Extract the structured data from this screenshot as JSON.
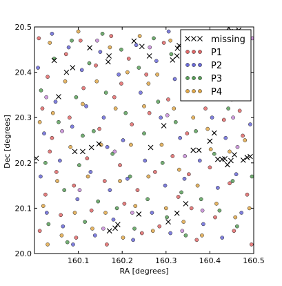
{
  "chart_data": {
    "type": "scatter",
    "xlabel": "RA [degrees]",
    "ylabel": "Dec [degrees]",
    "xlim": [
      160.0,
      160.5
    ],
    "ylim": [
      20.0,
      20.5
    ],
    "xticks": [
      160.1,
      160.2,
      160.3,
      160.4,
      160.5
    ],
    "yticks": [
      20.0,
      20.1,
      20.2,
      20.3,
      20.4,
      20.5
    ],
    "xtick_labels": [
      "160.1",
      "160.2",
      "160.3",
      "160.4",
      "160.5"
    ],
    "ytick_labels": [
      "20.0",
      "20.1",
      "20.2",
      "20.3",
      "20.4",
      "20.5"
    ],
    "grid": false,
    "legend_position": "top-right",
    "series": [
      {
        "name": "missing",
        "marker": "x",
        "color": "#000000",
        "points": [
          [
            160.045,
            20.426
          ],
          [
            160.055,
            20.346
          ],
          [
            160.073,
            20.4
          ],
          [
            160.087,
            20.41
          ],
          [
            160.092,
            20.225
          ],
          [
            160.11,
            20.225
          ],
          [
            160.126,
            20.454
          ],
          [
            160.13,
            20.234
          ],
          [
            160.147,
            20.242
          ],
          [
            160.168,
            20.423
          ],
          [
            160.17,
            20.436
          ],
          [
            160.19,
            20.064
          ],
          [
            160.184,
            20.056
          ],
          [
            160.171,
            20.05
          ],
          [
            160.227,
            20.469
          ],
          [
            160.245,
            20.457
          ],
          [
            160.238,
            20.087
          ],
          [
            160.262,
            20.436
          ],
          [
            160.265,
            20.234
          ],
          [
            160.295,
            20.282
          ],
          [
            160.315,
            20.427
          ],
          [
            160.325,
            20.436
          ],
          [
            160.326,
            20.453
          ],
          [
            160.33,
            20.459
          ],
          [
            160.305,
            20.07
          ],
          [
            160.325,
            20.089
          ],
          [
            160.345,
            20.11
          ],
          [
            160.362,
            20.228
          ],
          [
            160.375,
            20.228
          ],
          [
            160.4,
            20.248
          ],
          [
            160.41,
            20.266
          ],
          [
            160.418,
            20.208
          ],
          [
            160.428,
            20.208
          ],
          [
            160.434,
            20.209
          ],
          [
            160.44,
            20.196
          ],
          [
            160.448,
            20.205
          ],
          [
            160.456,
            20.218
          ],
          [
            160.476,
            20.206
          ],
          [
            160.485,
            20.212
          ],
          [
            160.492,
            20.214
          ],
          [
            160.443,
            20.498
          ],
          [
            160.456,
            20.49
          ],
          [
            160.466,
            20.493
          ],
          [
            160.004,
            20.21
          ]
        ]
      },
      {
        "name": "P1",
        "marker": "o",
        "color": "#e06868",
        "points": [
          [
            160.01,
            20.475
          ],
          [
            160.018,
            20.32
          ],
          [
            160.025,
            20.13
          ],
          [
            160.012,
            20.05
          ],
          [
            160.03,
            20.39
          ],
          [
            160.04,
            20.255
          ],
          [
            160.05,
            20.18
          ],
          [
            160.06,
            20.085
          ],
          [
            160.072,
            20.44
          ],
          [
            160.08,
            20.3
          ],
          [
            160.09,
            20.15
          ],
          [
            160.095,
            20.035
          ],
          [
            160.105,
            20.47
          ],
          [
            160.112,
            20.365
          ],
          [
            160.12,
            20.21
          ],
          [
            160.13,
            20.095
          ],
          [
            160.14,
            20.415
          ],
          [
            160.148,
            20.275
          ],
          [
            160.16,
            20.16
          ],
          [
            160.165,
            20.02
          ],
          [
            160.175,
            20.48
          ],
          [
            160.182,
            20.345
          ],
          [
            160.195,
            20.195
          ],
          [
            160.205,
            20.11
          ],
          [
            160.215,
            20.43
          ],
          [
            160.222,
            20.285
          ],
          [
            160.235,
            20.14
          ],
          [
            160.245,
            20.045
          ],
          [
            160.255,
            20.395
          ],
          [
            160.262,
            20.31
          ],
          [
            160.275,
            20.18
          ],
          [
            160.285,
            20.06
          ],
          [
            160.295,
            20.465
          ],
          [
            160.305,
            20.34
          ],
          [
            160.315,
            20.215
          ],
          [
            160.328,
            20.125
          ],
          [
            160.338,
            20.41
          ],
          [
            160.348,
            20.265
          ],
          [
            160.358,
            20.1
          ],
          [
            160.37,
            20.03
          ],
          [
            160.38,
            20.455
          ],
          [
            160.39,
            20.32
          ],
          [
            160.4,
            20.19
          ],
          [
            160.412,
            20.08
          ],
          [
            160.422,
            20.42
          ],
          [
            160.432,
            20.295
          ],
          [
            160.445,
            20.155
          ],
          [
            160.455,
            20.05
          ],
          [
            160.465,
            20.38
          ],
          [
            160.475,
            20.26
          ],
          [
            160.485,
            20.13
          ],
          [
            160.495,
            20.02
          ],
          [
            160.035,
            20.225
          ],
          [
            160.198,
            20.375
          ],
          [
            160.352,
            20.175
          ],
          [
            160.468,
            20.315
          ]
        ]
      },
      {
        "name": "P2",
        "marker": "o",
        "color": "#6a6ad8",
        "points": [
          [
            160.008,
            20.41
          ],
          [
            160.022,
            20.265
          ],
          [
            160.028,
            20.09
          ],
          [
            160.04,
            20.485
          ],
          [
            160.048,
            20.335
          ],
          [
            160.058,
            20.205
          ],
          [
            160.065,
            20.06
          ],
          [
            160.078,
            20.455
          ],
          [
            160.086,
            20.28
          ],
          [
            160.098,
            20.12
          ],
          [
            160.108,
            20.405
          ],
          [
            160.118,
            20.325
          ],
          [
            160.128,
            20.18
          ],
          [
            160.138,
            20.04
          ],
          [
            160.15,
            20.445
          ],
          [
            160.158,
            20.3
          ],
          [
            160.172,
            20.14
          ],
          [
            160.18,
            20.075
          ],
          [
            160.192,
            20.395
          ],
          [
            160.202,
            20.25
          ],
          [
            160.212,
            20.165
          ],
          [
            160.225,
            20.03
          ],
          [
            160.232,
            20.46
          ],
          [
            160.242,
            20.355
          ],
          [
            160.252,
            20.205
          ],
          [
            160.268,
            20.09
          ],
          [
            160.278,
            20.425
          ],
          [
            160.288,
            20.3
          ],
          [
            160.298,
            20.15
          ],
          [
            160.31,
            20.045
          ],
          [
            160.32,
            20.385
          ],
          [
            160.332,
            20.255
          ],
          [
            160.342,
            20.165
          ],
          [
            160.355,
            20.48
          ],
          [
            160.365,
            20.345
          ],
          [
            160.377,
            20.205
          ],
          [
            160.385,
            20.065
          ],
          [
            160.395,
            20.425
          ],
          [
            160.405,
            20.3
          ],
          [
            160.418,
            20.145
          ],
          [
            160.428,
            20.035
          ],
          [
            160.438,
            20.46
          ],
          [
            160.45,
            20.34
          ],
          [
            160.46,
            20.175
          ],
          [
            160.472,
            20.09
          ],
          [
            160.482,
            20.405
          ],
          [
            160.492,
            20.285
          ],
          [
            160.014,
            20.17
          ],
          [
            160.166,
            20.235
          ],
          [
            160.306,
            20.49
          ],
          [
            160.436,
            20.255
          ],
          [
            160.088,
            20.02
          ]
        ]
      },
      {
        "name": "P3",
        "marker": "o",
        "color": "#5aa05a",
        "points": [
          [
            160.015,
            20.36
          ],
          [
            160.025,
            20.2
          ],
          [
            160.032,
            20.065
          ],
          [
            160.045,
            20.43
          ],
          [
            160.055,
            20.29
          ],
          [
            160.068,
            20.14
          ],
          [
            160.075,
            20.025
          ],
          [
            160.085,
            20.47
          ],
          [
            160.095,
            20.345
          ],
          [
            160.102,
            20.195
          ],
          [
            160.115,
            20.07
          ],
          [
            160.125,
            20.42
          ],
          [
            160.135,
            20.27
          ],
          [
            160.145,
            20.115
          ],
          [
            160.155,
            20.485
          ],
          [
            160.163,
            20.355
          ],
          [
            160.178,
            20.22
          ],
          [
            160.188,
            20.1
          ],
          [
            160.198,
            20.45
          ],
          [
            160.208,
            20.31
          ],
          [
            160.218,
            20.17
          ],
          [
            160.228,
            20.055
          ],
          [
            160.238,
            20.41
          ],
          [
            160.25,
            20.265
          ],
          [
            160.258,
            20.12
          ],
          [
            160.272,
            20.475
          ],
          [
            160.282,
            20.335
          ],
          [
            160.292,
            20.2
          ],
          [
            160.302,
            20.08
          ],
          [
            160.312,
            20.44
          ],
          [
            160.322,
            20.29
          ],
          [
            160.335,
            20.135
          ],
          [
            160.345,
            20.04
          ],
          [
            160.358,
            20.395
          ],
          [
            160.368,
            20.27
          ],
          [
            160.38,
            20.12
          ],
          [
            160.392,
            20.48
          ],
          [
            160.402,
            20.35
          ],
          [
            160.41,
            20.22
          ],
          [
            160.422,
            20.095
          ],
          [
            160.435,
            20.44
          ],
          [
            160.442,
            20.32
          ],
          [
            160.452,
            20.16
          ],
          [
            160.462,
            20.06
          ],
          [
            160.478,
            20.46
          ],
          [
            160.488,
            20.345
          ],
          [
            160.496,
            20.17
          ],
          [
            160.11,
            20.26
          ]
        ]
      },
      {
        "name": "P4",
        "marker": "o",
        "color": "#e0a84a",
        "points": [
          [
            160.012,
            20.29
          ],
          [
            160.02,
            20.105
          ],
          [
            160.035,
            20.465
          ],
          [
            160.042,
            20.31
          ],
          [
            160.052,
            20.16
          ],
          [
            160.062,
            20.04
          ],
          [
            160.07,
            20.38
          ],
          [
            160.082,
            20.235
          ],
          [
            160.092,
            20.09
          ],
          [
            160.1,
            20.49
          ],
          [
            160.11,
            20.33
          ],
          [
            160.122,
            20.17
          ],
          [
            160.132,
            20.055
          ],
          [
            160.142,
            20.38
          ],
          [
            160.152,
            20.24
          ],
          [
            160.162,
            20.09
          ],
          [
            160.172,
            20.455
          ],
          [
            160.185,
            20.32
          ],
          [
            160.195,
            20.16
          ],
          [
            160.202,
            20.035
          ],
          [
            160.212,
            20.4
          ],
          [
            160.22,
            20.24
          ],
          [
            160.23,
            20.105
          ],
          [
            160.24,
            20.48
          ],
          [
            160.25,
            20.325
          ],
          [
            160.26,
            20.17
          ],
          [
            160.27,
            20.05
          ],
          [
            160.28,
            20.395
          ],
          [
            160.29,
            20.24
          ],
          [
            160.3,
            20.1
          ],
          [
            160.31,
            20.47
          ],
          [
            160.318,
            20.32
          ],
          [
            160.33,
            20.185
          ],
          [
            160.34,
            20.07
          ],
          [
            160.35,
            20.44
          ],
          [
            160.362,
            20.3
          ],
          [
            160.372,
            20.15
          ],
          [
            160.382,
            20.04
          ],
          [
            160.392,
            20.37
          ],
          [
            160.402,
            20.23
          ],
          [
            160.415,
            20.11
          ],
          [
            160.425,
            20.47
          ],
          [
            160.435,
            20.36
          ],
          [
            160.445,
            20.225
          ],
          [
            160.458,
            20.08
          ],
          [
            160.47,
            20.42
          ],
          [
            160.48,
            20.25
          ],
          [
            160.49,
            20.1
          ],
          [
            160.03,
            20.02
          ],
          [
            160.26,
            20.375
          ],
          [
            160.395,
            20.275
          ]
        ]
      },
      {
        "name": "",
        "marker": "o",
        "color": "#c88cd8",
        "points": [
          [
            160.027,
            20.345
          ],
          [
            160.063,
            20.27
          ],
          [
            160.103,
            20.14
          ],
          [
            160.143,
            20.47
          ],
          [
            160.183,
            20.225
          ],
          [
            160.223,
            20.09
          ],
          [
            160.263,
            20.455
          ],
          [
            160.303,
            20.305
          ],
          [
            160.343,
            20.215
          ],
          [
            160.383,
            20.095
          ],
          [
            160.423,
            20.385
          ],
          [
            160.463,
            20.235
          ],
          [
            160.497,
            20.475
          ],
          [
            160.157,
            20.055
          ],
          [
            160.337,
            20.05
          ],
          [
            160.453,
            20.3
          ]
        ]
      }
    ]
  }
}
